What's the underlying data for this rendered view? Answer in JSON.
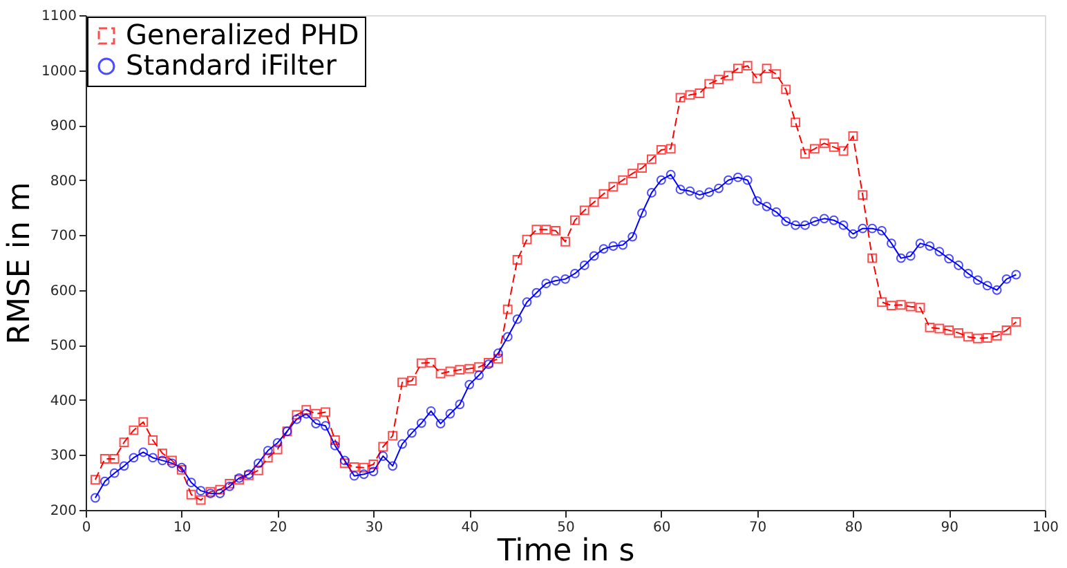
{
  "chart_data": {
    "type": "line",
    "xlabel": "Time in s",
    "ylabel": "RMSE in m",
    "x": [
      1,
      2,
      3,
      4,
      5,
      6,
      7,
      8,
      9,
      10,
      11,
      12,
      13,
      14,
      15,
      16,
      17,
      18,
      19,
      20,
      21,
      22,
      23,
      24,
      25,
      26,
      27,
      28,
      29,
      30,
      31,
      32,
      33,
      34,
      35,
      36,
      37,
      38,
      39,
      40,
      41,
      42,
      43,
      44,
      45,
      46,
      47,
      48,
      49,
      50,
      51,
      52,
      53,
      54,
      55,
      56,
      57,
      58,
      59,
      60,
      61,
      62,
      63,
      64,
      65,
      66,
      67,
      68,
      69,
      70,
      71,
      72,
      73,
      74,
      75,
      76,
      77,
      78,
      79,
      80,
      81,
      82,
      83,
      84,
      85,
      86,
      87,
      88,
      89,
      90,
      91,
      92,
      93,
      94,
      95,
      96,
      97
    ],
    "series": [
      {
        "name": "Generalized PHD",
        "color": "#ff0000",
        "marker": "square",
        "line_style": "dashed",
        "values": [
          255,
          293,
          293,
          323,
          345,
          360,
          327,
          303,
          290,
          273,
          228,
          218,
          233,
          237,
          248,
          255,
          263,
          272,
          295,
          310,
          343,
          373,
          382,
          375,
          378,
          327,
          285,
          278,
          277,
          283,
          315,
          335,
          432,
          435,
          467,
          468,
          448,
          452,
          455,
          457,
          460,
          468,
          475,
          565,
          655,
          692,
          710,
          710,
          708,
          688,
          727,
          745,
          760,
          775,
          788,
          800,
          812,
          822,
          838,
          855,
          857,
          950,
          955,
          958,
          975,
          983,
          990,
          1003,
          1008,
          985,
          1003,
          993,
          965,
          905,
          848,
          857,
          867,
          860,
          853,
          880,
          773,
          658,
          578,
          572,
          573,
          570,
          568,
          532,
          530,
          527,
          522,
          515,
          512,
          513,
          517,
          527,
          542
        ]
      },
      {
        "name": "Standard iFilter",
        "color": "#0000ff",
        "marker": "circle",
        "line_style": "solid",
        "values": [
          222,
          252,
          267,
          280,
          295,
          305,
          295,
          290,
          285,
          277,
          250,
          235,
          230,
          230,
          243,
          258,
          265,
          285,
          308,
          322,
          343,
          365,
          375,
          357,
          353,
          317,
          290,
          262,
          265,
          270,
          298,
          280,
          320,
          340,
          358,
          380,
          357,
          375,
          392,
          428,
          445,
          465,
          485,
          515,
          547,
          578,
          595,
          612,
          617,
          620,
          630,
          645,
          662,
          675,
          680,
          682,
          697,
          740,
          777,
          800,
          810,
          783,
          780,
          773,
          778,
          785,
          800,
          805,
          800,
          762,
          752,
          742,
          725,
          718,
          718,
          725,
          730,
          727,
          718,
          702,
          712,
          712,
          708,
          685,
          658,
          662,
          685,
          680,
          670,
          657,
          645,
          630,
          618,
          608,
          600,
          620,
          628
        ]
      }
    ],
    "xlim": [
      0,
      100
    ],
    "xticks": [
      0,
      10,
      20,
      30,
      40,
      50,
      60,
      70,
      80,
      90,
      100
    ],
    "ylim": [
      200,
      1100
    ],
    "yticks": [
      200,
      300,
      400,
      500,
      600,
      700,
      800,
      900,
      1000,
      1100
    ],
    "grid": false,
    "legend": "top left"
  }
}
